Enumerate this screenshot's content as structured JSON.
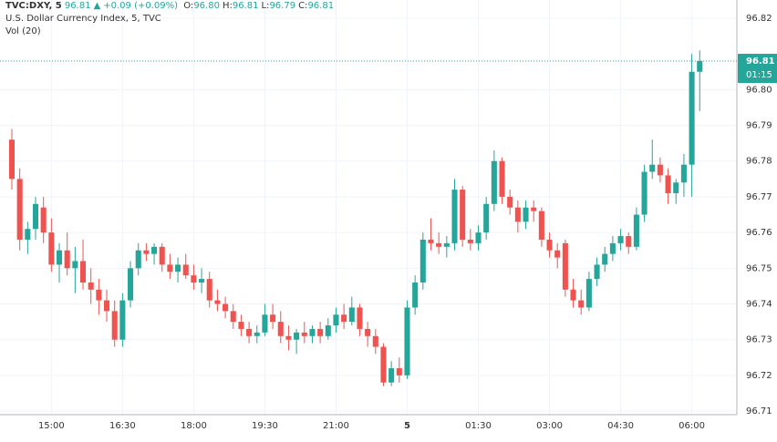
{
  "header": {
    "symbol": "TVC:DXY, 5",
    "price": "96.81",
    "arrow": "▲",
    "change": "+0.09 (+0.09%)",
    "ohlc": [
      {
        "label": "O:",
        "value": "96.80"
      },
      {
        "label": "H:",
        "value": "96.81"
      },
      {
        "label": "L:",
        "value": "96.79"
      },
      {
        "label": "C:",
        "value": "96.81"
      }
    ],
    "name": "U.S. Dollar Currency Index, 5, TVC",
    "volume": "Vol (20)"
  },
  "chart_data": {
    "type": "candlestick",
    "up_color": "#26a69a",
    "down_color": "#ef5350",
    "grid": true,
    "price_label": "96.81",
    "countdown": "01:15",
    "open": [
      96.786,
      96.775,
      96.758,
      96.761,
      96.767,
      96.76,
      96.751,
      96.755,
      96.75,
      96.752,
      96.746,
      96.744,
      96.741,
      96.738,
      96.73,
      96.741,
      96.75,
      96.755,
      96.754,
      96.756,
      96.751,
      96.749,
      96.751,
      96.748,
      96.746,
      96.747,
      96.741,
      96.74,
      96.738,
      96.735,
      96.733,
      96.731,
      96.732,
      96.737,
      96.735,
      96.731,
      96.73,
      96.732,
      96.731,
      96.733,
      96.731,
      96.734,
      96.737,
      96.735,
      96.739,
      96.733,
      96.731,
      96.728,
      96.718,
      96.722,
      96.72,
      96.739,
      96.746,
      96.758,
      96.757,
      96.756,
      96.757,
      96.772,
      96.758,
      96.757,
      96.76,
      96.768,
      96.78,
      96.77,
      96.767,
      96.763,
      96.767,
      96.766,
      96.758,
      96.755,
      96.757,
      96.744,
      96.741,
      96.739,
      96.747,
      96.751,
      96.754,
      96.757,
      96.759,
      96.756,
      96.765,
      96.777,
      96.779,
      96.776,
      96.771,
      96.774,
      96.779,
      96.805
    ],
    "high": [
      96.789,
      96.778,
      96.763,
      96.77,
      96.77,
      96.764,
      96.757,
      96.76,
      96.756,
      96.758,
      96.75,
      96.747,
      96.744,
      96.741,
      96.743,
      96.752,
      96.757,
      96.757,
      96.757,
      96.757,
      96.754,
      96.753,
      96.754,
      96.751,
      96.75,
      96.749,
      96.744,
      96.742,
      96.74,
      96.737,
      96.735,
      96.734,
      96.74,
      96.74,
      96.738,
      96.734,
      96.733,
      96.735,
      96.734,
      96.735,
      96.736,
      96.739,
      96.74,
      96.742,
      96.74,
      96.735,
      96.733,
      96.729,
      96.724,
      96.725,
      96.741,
      96.748,
      96.76,
      96.764,
      96.76,
      96.759,
      96.775,
      96.773,
      96.761,
      96.762,
      96.77,
      96.783,
      96.781,
      96.772,
      96.769,
      96.769,
      96.769,
      96.767,
      96.76,
      96.757,
      96.758,
      96.747,
      96.744,
      96.749,
      96.753,
      96.756,
      96.759,
      96.761,
      96.76,
      96.767,
      96.779,
      96.786,
      96.781,
      96.778,
      96.775,
      96.782,
      96.81,
      96.811
    ],
    "low": [
      96.772,
      96.755,
      96.754,
      96.758,
      96.757,
      96.749,
      96.746,
      96.748,
      96.743,
      96.744,
      96.74,
      96.737,
      96.735,
      96.728,
      96.728,
      96.739,
      96.748,
      96.752,
      96.751,
      96.749,
      96.747,
      96.746,
      96.747,
      96.744,
      96.743,
      96.739,
      96.738,
      96.736,
      96.733,
      96.731,
      96.729,
      96.729,
      96.731,
      96.733,
      96.729,
      96.727,
      96.726,
      96.729,
      96.729,
      96.729,
      96.73,
      96.732,
      96.733,
      96.734,
      96.731,
      96.728,
      96.726,
      96.717,
      96.717,
      96.718,
      96.719,
      96.737,
      96.744,
      96.755,
      96.754,
      96.753,
      96.755,
      96.756,
      96.755,
      96.755,
      96.758,
      96.766,
      96.768,
      96.765,
      96.76,
      96.761,
      96.763,
      96.756,
      96.753,
      96.75,
      96.742,
      96.739,
      96.737,
      96.738,
      96.745,
      96.749,
      96.752,
      96.755,
      96.754,
      96.755,
      96.763,
      96.775,
      96.774,
      96.768,
      96.768,
      96.77,
      96.77,
      96.794
    ],
    "close": [
      96.775,
      96.758,
      96.761,
      96.768,
      96.76,
      96.751,
      96.755,
      96.75,
      96.752,
      96.746,
      96.744,
      96.741,
      96.738,
      96.73,
      96.741,
      96.75,
      96.755,
      96.754,
      96.756,
      96.751,
      96.749,
      96.751,
      96.748,
      96.746,
      96.747,
      96.741,
      96.74,
      96.738,
      96.735,
      96.733,
      96.731,
      96.732,
      96.737,
      96.735,
      96.731,
      96.73,
      96.732,
      96.731,
      96.733,
      96.731,
      96.734,
      96.737,
      96.735,
      96.739,
      96.733,
      96.731,
      96.728,
      96.718,
      96.722,
      96.72,
      96.739,
      96.746,
      96.758,
      96.757,
      96.756,
      96.757,
      96.772,
      96.758,
      96.757,
      96.76,
      96.768,
      96.78,
      96.77,
      96.767,
      96.763,
      96.767,
      96.766,
      96.758,
      96.755,
      96.753,
      96.744,
      96.741,
      96.739,
      96.747,
      96.751,
      96.754,
      96.757,
      96.759,
      96.756,
      96.765,
      96.777,
      96.779,
      96.776,
      96.771,
      96.774,
      96.779,
      96.805,
      96.808
    ],
    "xlim": [
      -1.5,
      91.7
    ],
    "xticks": [
      {
        "value": 5,
        "label": "15:00"
      },
      {
        "value": 14,
        "label": "16:30"
      },
      {
        "value": 23,
        "label": "18:00"
      },
      {
        "value": 32,
        "label": "19:30"
      },
      {
        "value": 41,
        "label": "21:00"
      },
      {
        "value": 50,
        "label": "5"
      },
      {
        "value": 59,
        "label": "01:30"
      },
      {
        "value": 68,
        "label": "03:00"
      },
      {
        "value": 77,
        "label": "04:30"
      },
      {
        "value": 86,
        "label": "06:00"
      }
    ],
    "ylim": [
      96.709,
      96.8251
    ],
    "yticks": [
      {
        "value": 96.82,
        "label": "96.82"
      },
      {
        "value": 96.8,
        "label": "96.80"
      },
      {
        "value": 96.79,
        "label": "96.79"
      },
      {
        "value": 96.78,
        "label": "96.78"
      },
      {
        "value": 96.77,
        "label": "96.77"
      },
      {
        "value": 96.76,
        "label": "96.76"
      },
      {
        "value": 96.75,
        "label": "96.75"
      },
      {
        "value": 96.74,
        "label": "96.74"
      },
      {
        "value": 96.73,
        "label": "96.73"
      },
      {
        "value": 96.72,
        "label": "96.72"
      },
      {
        "value": 96.71,
        "label": "96.71"
      }
    ]
  }
}
